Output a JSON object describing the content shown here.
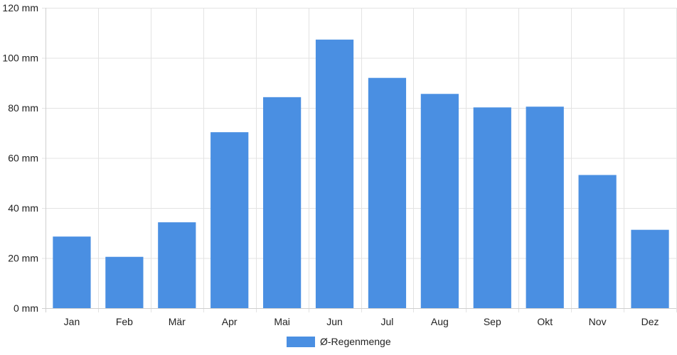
{
  "chart_data": {
    "type": "bar",
    "categories": [
      "Jan",
      "Feb",
      "Mär",
      "Apr",
      "Mai",
      "Jun",
      "Jul",
      "Aug",
      "Sep",
      "Okt",
      "Nov",
      "Dez"
    ],
    "series": [
      {
        "name": "Ø-Regenmenge",
        "values": [
          28.6,
          20.5,
          34.3,
          70.3,
          84.3,
          107.3,
          92.0,
          85.6,
          80.2,
          80.5,
          53.2,
          31.3
        ],
        "color": "#4a8fe2"
      }
    ],
    "y_ticks": [
      "0 mm",
      "20 mm",
      "40 mm",
      "60 mm",
      "80 mm",
      "100 mm",
      "120 mm"
    ],
    "ylim": [
      0,
      120
    ],
    "y_tick_step": 20,
    "grid": true,
    "legend_position": "bottom-center"
  }
}
